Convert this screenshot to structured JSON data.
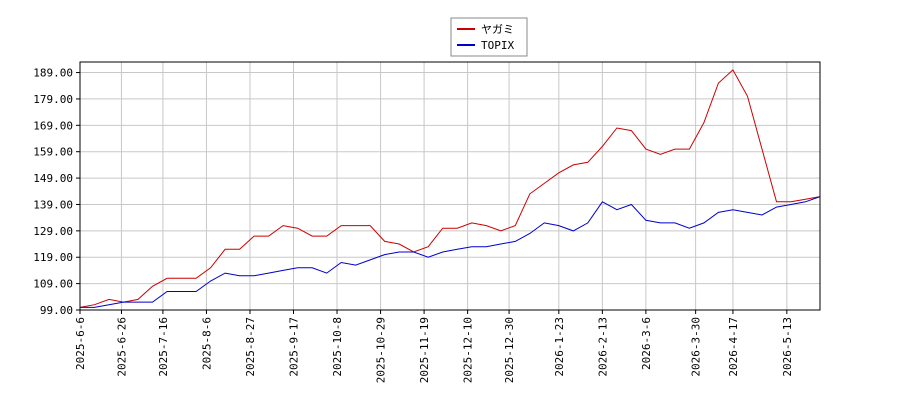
{
  "chart_data": {
    "type": "line",
    "x": [
      "2025-6-6",
      "2025-6-13",
      "2025-6-20",
      "2025-6-27",
      "2025-7-4",
      "2025-7-11",
      "2025-7-18",
      "2025-7-25",
      "2025-8-1",
      "2025-8-8",
      "2025-8-15",
      "2025-8-22",
      "2025-8-29",
      "2025-9-5",
      "2025-9-12",
      "2025-9-19",
      "2025-9-26",
      "2025-10-3",
      "2025-10-10",
      "2025-10-17",
      "2025-10-24",
      "2025-10-31",
      "2025-11-7",
      "2025-11-14",
      "2025-11-21",
      "2025-11-28",
      "2025-12-5",
      "2025-12-12",
      "2025-12-19",
      "2025-12-26",
      "2026-1-2",
      "2026-1-9",
      "2026-1-16",
      "2026-1-23",
      "2026-1-30",
      "2026-2-6",
      "2026-2-13",
      "2026-2-20",
      "2026-2-27",
      "2026-3-6",
      "2026-3-13",
      "2026-3-20",
      "2026-3-27",
      "2026-4-3",
      "2026-4-10",
      "2026-4-17",
      "2026-4-24",
      "2026-5-1",
      "2026-5-8",
      "2026-5-15",
      "2026-5-22",
      "2026-5-29"
    ],
    "series": [
      {
        "name": "ヤガミ",
        "color": "#cc0000",
        "values": [
          100,
          101,
          103,
          102,
          103,
          108,
          111,
          111,
          111,
          115,
          122,
          122,
          127,
          127,
          131,
          130,
          127,
          127,
          131,
          131,
          131,
          125,
          124,
          121,
          123,
          130,
          130,
          132,
          131,
          129,
          131,
          143,
          147,
          151,
          154,
          155,
          161,
          168,
          167,
          160,
          158,
          160,
          160,
          170,
          185,
          190,
          180,
          160,
          140,
          140,
          141,
          142
        ]
      },
      {
        "name": "TOPIX",
        "color": "#0000cc",
        "values": [
          100,
          100,
          101,
          102,
          102,
          102,
          106,
          106,
          106,
          110,
          113,
          112,
          112,
          113,
          114,
          115,
          115,
          113,
          117,
          116,
          118,
          120,
          121,
          121,
          119,
          121,
          122,
          123,
          123,
          124,
          125,
          128,
          132,
          131,
          129,
          132,
          140,
          137,
          139,
          133,
          132,
          132,
          130,
          132,
          136,
          137,
          136,
          135,
          138,
          139,
          140,
          142
        ]
      }
    ],
    "xlim": [
      "2025-6-6",
      "2026-5-29"
    ],
    "xticks": [
      "2025-6-6",
      "2025-6-26",
      "2025-7-16",
      "2025-8-6",
      "2025-8-27",
      "2025-9-17",
      "2025-10-8",
      "2025-10-29",
      "2025-11-19",
      "2025-12-10",
      "2025-12-30",
      "2026-1-23",
      "2026-2-13",
      "2026-3-6",
      "2026-3-30",
      "2026-4-17",
      "2026-5-13"
    ],
    "ylim": [
      99,
      193
    ],
    "yticks": [
      {
        "value": 99,
        "label": "99.00"
      },
      {
        "value": 109,
        "label": "109.00"
      },
      {
        "value": 119,
        "label": "119.00"
      },
      {
        "value": 129,
        "label": "129.00"
      },
      {
        "value": 139,
        "label": "139.00"
      },
      {
        "value": 149,
        "label": "149.00"
      },
      {
        "value": 159,
        "label": "159.00"
      },
      {
        "value": 169,
        "label": "169.00"
      },
      {
        "value": 179,
        "label": "179.00"
      },
      {
        "value": 189,
        "label": "189.00"
      }
    ],
    "grid": true,
    "legend": "upper center"
  }
}
